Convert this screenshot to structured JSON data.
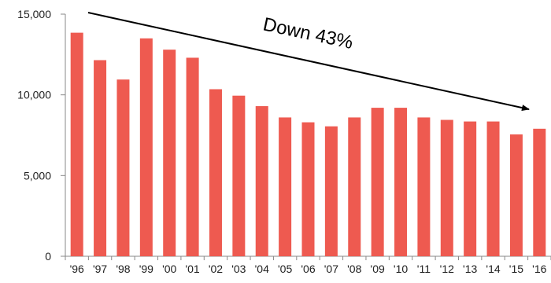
{
  "chart_data": {
    "type": "bar",
    "title": "",
    "xlabel": "",
    "ylabel": "",
    "categories": [
      "'96",
      "'97",
      "'98",
      "'99",
      "'00",
      "'01",
      "'02",
      "'03",
      "'04",
      "'05",
      "'06",
      "'07",
      "'08",
      "'09",
      "'10",
      "'11",
      "'12",
      "'13",
      "'14",
      "'15",
      "'16"
    ],
    "values": [
      13850,
      12150,
      10950,
      13500,
      12800,
      12300,
      10350,
      9950,
      9300,
      8600,
      8300,
      8050,
      8600,
      9200,
      9200,
      8600,
      8450,
      8350,
      8350,
      7550,
      7900
    ],
    "ylim": [
      0,
      15000
    ],
    "yticks": [
      0,
      5000,
      10000,
      15000
    ],
    "ytick_labels": [
      "0",
      "5,000",
      "10,000",
      "15,000"
    ],
    "grid": false,
    "colors": {
      "bar": "#EE5A50",
      "axis": "#888888",
      "arrow": "#000000"
    },
    "annotation": {
      "text": "Down 43%"
    }
  }
}
